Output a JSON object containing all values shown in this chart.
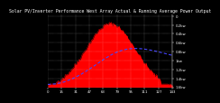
{
  "title": "Solar PV/Inverter Performance West Array Actual & Running Average Power Output",
  "bg_color": "#000000",
  "plot_bg_color": "#000000",
  "grid_color": "#ffffff",
  "fill_color": "#ff0000",
  "line_color": "#ff0000",
  "avg_color": "#4444ff",
  "title_color": "#ffffff",
  "tick_color": "#ffffff",
  "n_points": 144,
  "peak_index": 72,
  "peak_value": 1.0,
  "xlim": [
    0,
    143
  ],
  "ylim": [
    0,
    1.15
  ],
  "right_labels": [
    "1.6kw",
    "1.4kw",
    "1.2kw",
    "1kw",
    "0.8kw",
    "0.6kw",
    "0.4kw",
    "0.2kw",
    "0"
  ],
  "title_fontsize": 3.5,
  "tick_fontsize": 2.8
}
